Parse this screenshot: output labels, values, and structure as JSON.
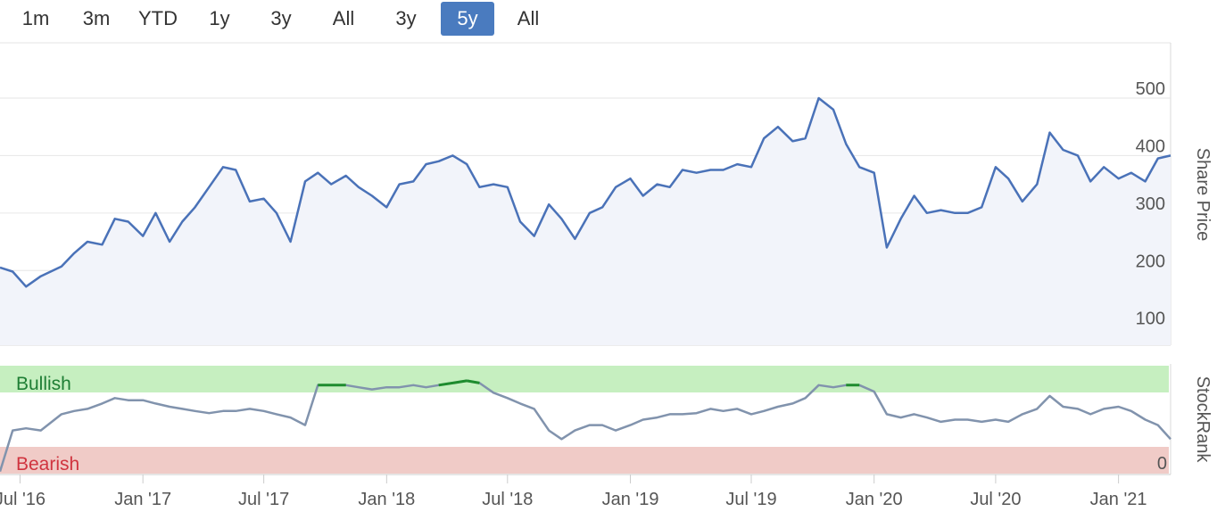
{
  "range_selector": {
    "buttons": [
      {
        "label": "1m",
        "active": false
      },
      {
        "label": "3m",
        "active": false
      },
      {
        "label": "YTD",
        "active": false
      },
      {
        "label": "1y",
        "active": false
      },
      {
        "label": "3y",
        "active": false
      },
      {
        "label": "All",
        "active": false
      },
      {
        "label": "3y",
        "active": false
      },
      {
        "label": "5y",
        "active": true
      },
      {
        "label": "All",
        "active": false
      }
    ]
  },
  "colors": {
    "price_line": "#4a72b8",
    "price_fill": "#f2f4fa",
    "rank_line": "#8193ad",
    "rank_highlight": "#1e8c2e",
    "bullish_band": "#c6efc0",
    "bearish_band": "#f0cbc7",
    "bullish_text": "#1e7e34",
    "bearish_text": "#d0343f",
    "active_button": "#4a7bbf"
  },
  "chart_data": [
    {
      "type": "line",
      "ylabel": "Share Price",
      "ylim": [
        70,
        590
      ],
      "yticks": [
        "100",
        "200",
        "300",
        "400",
        "500"
      ],
      "series": [
        {
          "x": [
            "2016-06-01",
            "2016-06-20",
            "2016-07-10",
            "2016-08-01",
            "2016-09-01",
            "2016-09-20",
            "2016-10-10",
            "2016-11-01",
            "2016-11-20",
            "2016-12-10",
            "2017-01-01",
            "2017-01-20",
            "2017-02-10",
            "2017-03-01",
            "2017-03-20",
            "2017-04-10",
            "2017-05-01",
            "2017-05-20",
            "2017-06-10",
            "2017-07-01",
            "2017-07-20",
            "2017-08-10",
            "2017-09-01",
            "2017-09-20",
            "2017-10-10",
            "2017-11-01",
            "2017-11-20",
            "2017-12-10",
            "2018-01-01",
            "2018-01-20",
            "2018-02-10",
            "2018-03-01",
            "2018-03-20",
            "2018-04-10",
            "2018-05-01",
            "2018-05-20",
            "2018-06-10",
            "2018-07-01",
            "2018-07-20",
            "2018-08-10",
            "2018-09-01",
            "2018-09-20",
            "2018-10-10",
            "2018-11-01",
            "2018-11-20",
            "2018-12-10",
            "2019-01-01",
            "2019-01-20",
            "2019-02-10",
            "2019-03-01",
            "2019-03-20",
            "2019-04-10",
            "2019-05-01",
            "2019-05-20",
            "2019-06-10",
            "2019-07-01",
            "2019-07-20",
            "2019-08-10",
            "2019-09-01",
            "2019-09-20",
            "2019-10-10",
            "2019-11-01",
            "2019-11-20",
            "2019-12-10",
            "2020-01-01",
            "2020-01-20",
            "2020-02-10",
            "2020-03-01",
            "2020-03-20",
            "2020-04-10",
            "2020-05-01",
            "2020-05-20",
            "2020-06-10",
            "2020-07-01",
            "2020-07-20",
            "2020-08-10",
            "2020-09-01",
            "2020-09-20",
            "2020-10-10",
            "2020-11-01",
            "2020-11-20",
            "2020-12-10",
            "2021-01-01",
            "2021-01-20",
            "2021-02-10",
            "2021-03-01",
            "2021-03-20"
          ],
          "y": [
            205,
            198,
            172,
            190,
            207,
            230,
            250,
            245,
            290,
            285,
            260,
            300,
            250,
            285,
            310,
            345,
            380,
            375,
            320,
            325,
            300,
            250,
            355,
            370,
            350,
            365,
            345,
            330,
            310,
            350,
            355,
            385,
            390,
            400,
            385,
            345,
            350,
            345,
            285,
            260,
            315,
            290,
            255,
            300,
            310,
            345,
            360,
            330,
            350,
            345,
            375,
            370,
            375,
            375,
            385,
            380,
            430,
            450,
            425,
            430,
            500,
            480,
            420,
            380,
            370,
            240,
            290,
            330,
            300,
            305,
            300,
            300,
            310,
            380,
            360,
            320,
            350,
            440,
            410,
            400,
            355,
            380,
            360,
            370,
            355,
            395,
            400
          ]
        }
      ]
    },
    {
      "type": "line",
      "ylabel": "StockRank",
      "ylim": [
        0,
        100
      ],
      "yticks": [
        "0"
      ],
      "bands": [
        {
          "label": "Bullish",
          "from": 80,
          "to": 100
        },
        {
          "label": "Bearish",
          "from": 0,
          "to": 20
        }
      ],
      "x_axis_labels": [
        "Jul '16",
        "Jan '17",
        "Jul '17",
        "Jan '18",
        "Jul '18",
        "Jan '19",
        "Jul '19",
        "Jan '20",
        "Jul '20",
        "Jan '21"
      ],
      "series": [
        {
          "x": [
            "2016-06-01",
            "2016-06-20",
            "2016-07-10",
            "2016-08-01",
            "2016-09-01",
            "2016-09-20",
            "2016-10-10",
            "2016-11-01",
            "2016-11-20",
            "2016-12-10",
            "2017-01-01",
            "2017-01-20",
            "2017-02-10",
            "2017-03-01",
            "2017-03-20",
            "2017-04-10",
            "2017-05-01",
            "2017-05-20",
            "2017-06-10",
            "2017-07-01",
            "2017-07-20",
            "2017-08-10",
            "2017-09-01",
            "2017-09-20",
            "2017-10-10",
            "2017-11-01",
            "2017-11-20",
            "2017-12-10",
            "2018-01-01",
            "2018-01-20",
            "2018-02-10",
            "2018-03-01",
            "2018-03-20",
            "2018-04-10",
            "2018-05-01",
            "2018-05-20",
            "2018-06-10",
            "2018-07-01",
            "2018-07-20",
            "2018-08-10",
            "2018-09-01",
            "2018-09-20",
            "2018-10-10",
            "2018-11-01",
            "2018-11-20",
            "2018-12-10",
            "2019-01-01",
            "2019-01-20",
            "2019-02-10",
            "2019-03-01",
            "2019-03-20",
            "2019-04-10",
            "2019-05-01",
            "2019-05-20",
            "2019-06-10",
            "2019-07-01",
            "2019-07-20",
            "2019-08-10",
            "2019-09-01",
            "2019-09-20",
            "2019-10-10",
            "2019-11-01",
            "2019-11-20",
            "2019-12-10",
            "2020-01-01",
            "2020-01-20",
            "2020-02-10",
            "2020-03-01",
            "2020-03-20",
            "2020-04-10",
            "2020-05-01",
            "2020-05-20",
            "2020-06-10",
            "2020-07-01",
            "2020-07-20",
            "2020-08-10",
            "2020-09-01",
            "2020-09-20",
            "2020-10-10",
            "2020-11-01",
            "2020-11-20",
            "2020-12-10",
            "2021-01-01",
            "2021-01-20",
            "2021-02-10",
            "2021-03-01",
            "2021-03-20"
          ],
          "y": [
            2,
            40,
            42,
            40,
            55,
            58,
            60,
            65,
            70,
            68,
            68,
            65,
            62,
            60,
            58,
            56,
            58,
            58,
            60,
            58,
            55,
            52,
            45,
            82,
            82,
            82,
            80,
            78,
            80,
            80,
            82,
            80,
            82,
            84,
            86,
            84,
            75,
            70,
            65,
            60,
            40,
            32,
            40,
            45,
            45,
            40,
            45,
            50,
            52,
            55,
            55,
            56,
            60,
            58,
            60,
            55,
            58,
            62,
            65,
            70,
            82,
            80,
            82,
            82,
            76,
            55,
            52,
            55,
            52,
            48,
            50,
            50,
            48,
            50,
            48,
            55,
            60,
            72,
            62,
            60,
            55,
            60,
            62,
            58,
            50,
            45,
            32
          ]
        }
      ]
    }
  ]
}
